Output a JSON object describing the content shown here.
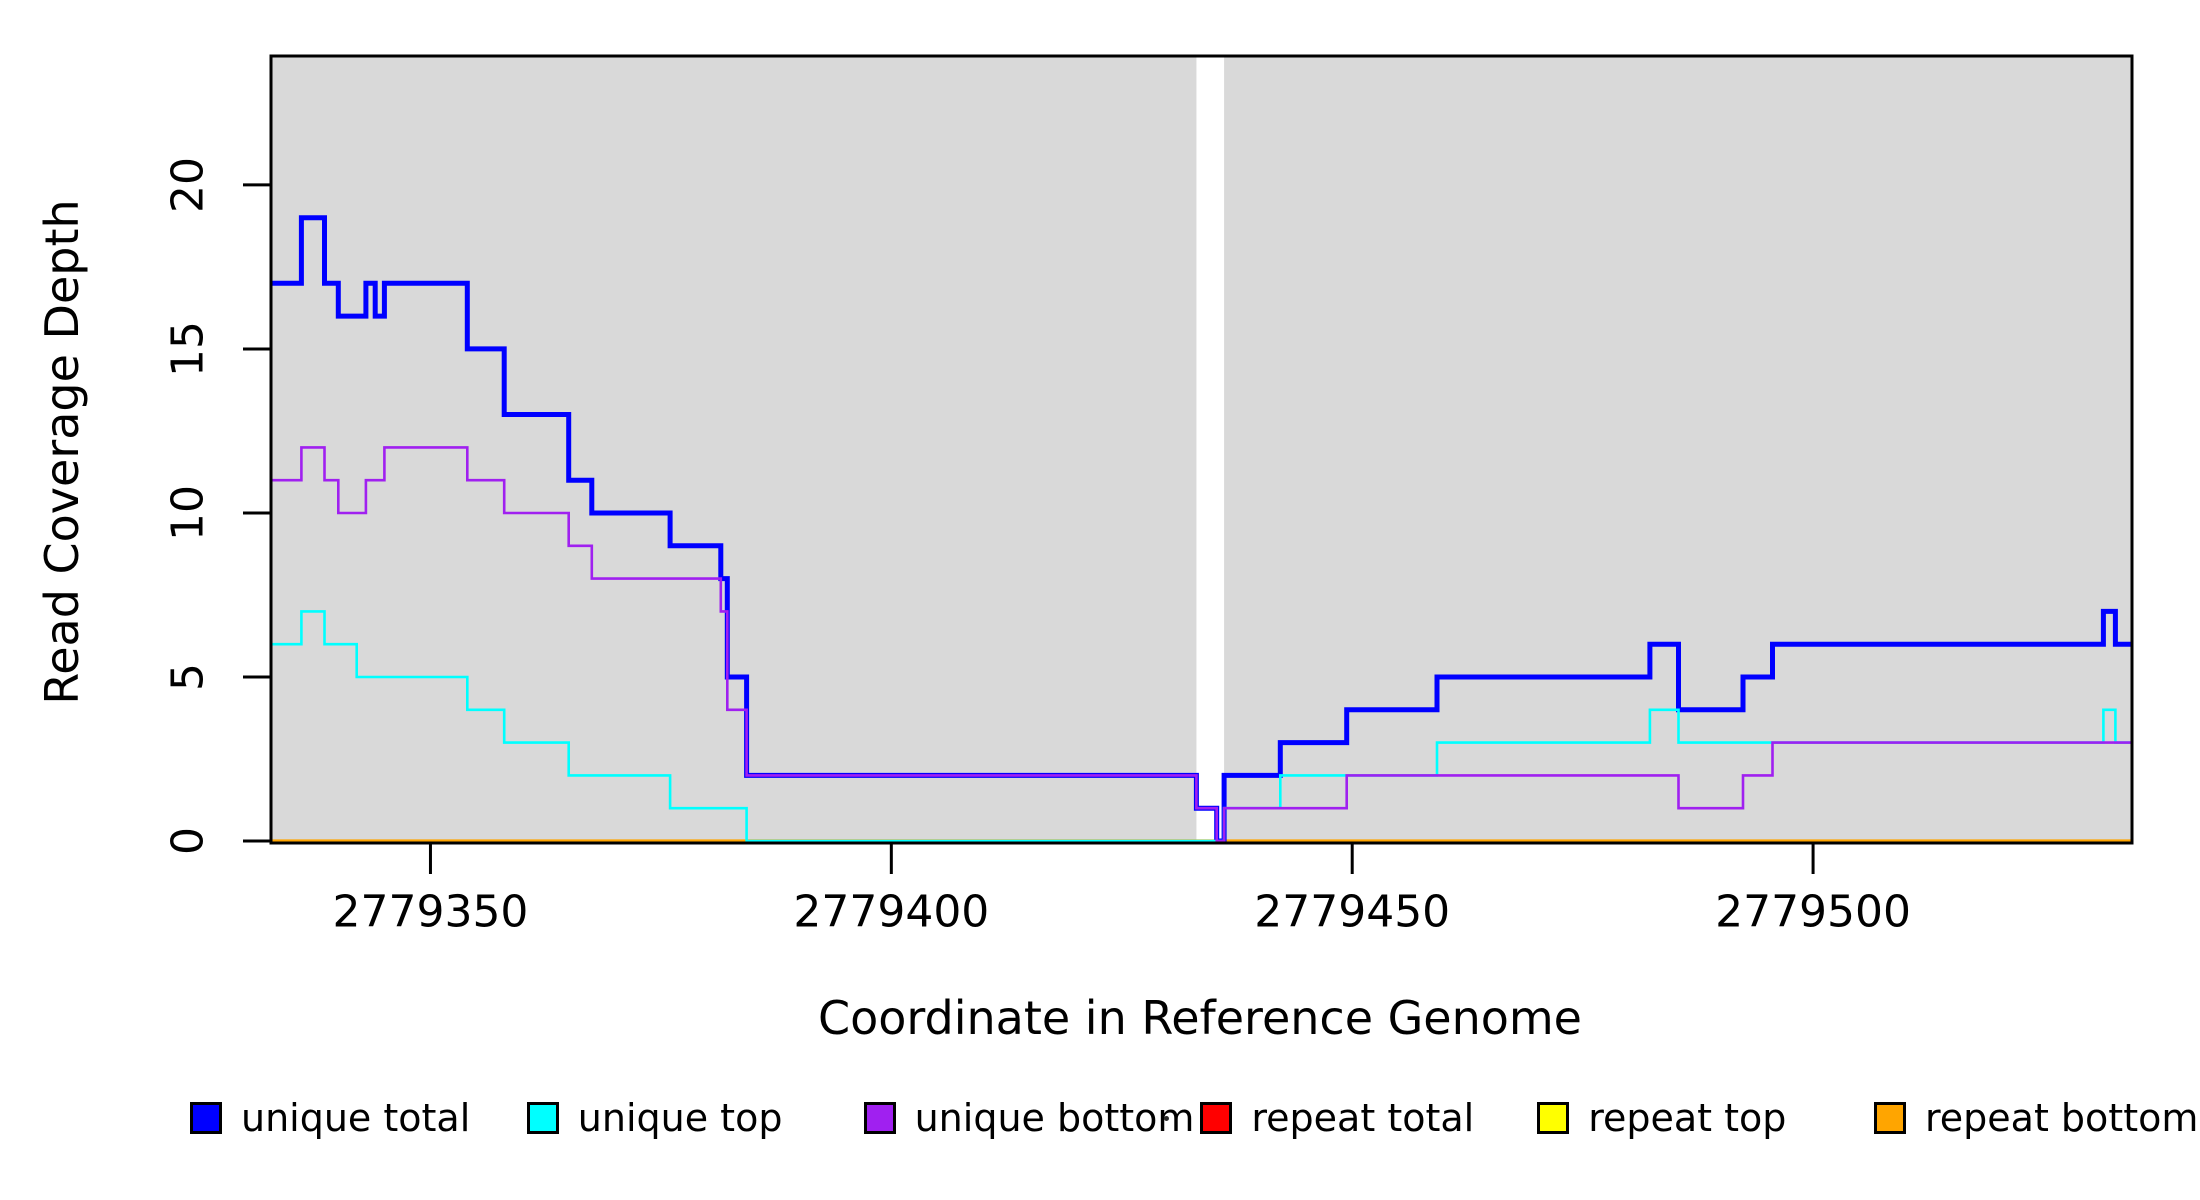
{
  "figure": {
    "background_color": "#ffffff",
    "plot_background_color": "#d9d9d9",
    "border_color": "#000000"
  },
  "chart_data": {
    "type": "line",
    "step_style": "post",
    "title": "",
    "xlabel": "Coordinate in Reference Genome",
    "ylabel": "Read Coverage Depth",
    "xlim": [
      2779332.7,
      2779534.6
    ],
    "ylim": [
      0,
      23.93
    ],
    "x_ticks": [
      2779350,
      2779400,
      2779450,
      2779500
    ],
    "y_ticks": [
      0,
      5,
      10,
      15,
      20
    ],
    "grid": false,
    "legend_position": "bottom",
    "panel_gap": {
      "x_start": 2779433.1,
      "x_end": 2779436.1
    },
    "draw_order": [
      3,
      4,
      5,
      0,
      1,
      2
    ],
    "series": [
      {
        "name": "unique total",
        "color": "#0000ff",
        "line_width": 5,
        "points": [
          [
            2779332.7,
            17
          ],
          [
            2779336,
            19
          ],
          [
            2779338.5,
            17
          ],
          [
            2779340,
            16
          ],
          [
            2779343,
            17
          ],
          [
            2779344,
            16
          ],
          [
            2779345,
            17
          ],
          [
            2779354,
            15
          ],
          [
            2779358,
            13
          ],
          [
            2779365,
            11
          ],
          [
            2779367.5,
            10
          ],
          [
            2779376,
            9
          ],
          [
            2779381.5,
            8
          ],
          [
            2779382.2,
            5
          ],
          [
            2779384.3,
            2
          ],
          [
            2779433.1,
            1
          ],
          [
            2779435.3,
            0
          ],
          [
            2779436.1,
            2
          ],
          [
            2779442.2,
            3
          ],
          [
            2779449.4,
            4
          ],
          [
            2779459.2,
            5
          ],
          [
            2779482.3,
            6
          ],
          [
            2779485.4,
            4
          ],
          [
            2779492.4,
            5
          ],
          [
            2779495.6,
            6
          ],
          [
            2779531.5,
            7
          ],
          [
            2779532.8,
            6
          ],
          [
            2779534.6,
            6
          ]
        ]
      },
      {
        "name": "unique top",
        "color": "#00ffff",
        "line_width": 2.6,
        "points": [
          [
            2779332.7,
            6
          ],
          [
            2779336,
            7
          ],
          [
            2779338.5,
            6
          ],
          [
            2779342,
            5
          ],
          [
            2779354,
            4
          ],
          [
            2779358,
            3
          ],
          [
            2779365,
            2
          ],
          [
            2779376,
            1
          ],
          [
            2779384.3,
            0
          ],
          [
            2779436.1,
            1
          ],
          [
            2779442.2,
            2
          ],
          [
            2779459.2,
            3
          ],
          [
            2779482.3,
            4
          ],
          [
            2779485.4,
            3
          ],
          [
            2779531.5,
            4
          ],
          [
            2779532.8,
            3
          ],
          [
            2779534.6,
            3
          ]
        ]
      },
      {
        "name": "unique bottom",
        "color": "#a020f0",
        "line_width": 2.6,
        "points": [
          [
            2779332.7,
            11
          ],
          [
            2779336,
            12
          ],
          [
            2779338.5,
            11
          ],
          [
            2779340,
            10
          ],
          [
            2779343,
            11
          ],
          [
            2779345,
            12
          ],
          [
            2779354,
            11
          ],
          [
            2779358,
            10
          ],
          [
            2779365,
            9
          ],
          [
            2779367.5,
            8
          ],
          [
            2779381.5,
            7
          ],
          [
            2779382.2,
            4
          ],
          [
            2779384.3,
            2
          ],
          [
            2779433.1,
            1
          ],
          [
            2779435.3,
            0
          ],
          [
            2779436.1,
            1
          ],
          [
            2779449.4,
            2
          ],
          [
            2779485.4,
            1
          ],
          [
            2779492.4,
            2
          ],
          [
            2779495.6,
            3
          ],
          [
            2779534.6,
            3
          ]
        ]
      },
      {
        "name": "repeat total",
        "color": "#ff0000",
        "line_width": 2.4,
        "points": [
          [
            2779332.7,
            0
          ],
          [
            2779534.6,
            0
          ]
        ]
      },
      {
        "name": "repeat top",
        "color": "#ffff00",
        "line_width": 2.4,
        "points": [
          [
            2779332.7,
            0
          ],
          [
            2779534.6,
            0
          ]
        ]
      },
      {
        "name": "repeat bottom",
        "color": "#ffa500",
        "line_width": 3.2,
        "points": [
          [
            2779332.7,
            0
          ],
          [
            2779534.6,
            0
          ]
        ]
      }
    ]
  },
  "legend": {
    "items": [
      {
        "label": "unique total",
        "color": "#0000ff"
      },
      {
        "label": "unique top",
        "color": "#00ffff"
      },
      {
        "label": "unique bottom",
        "color": "#a020f0"
      },
      {
        "label": "repeat total",
        "color": "#ff0000"
      },
      {
        "label": "repeat top",
        "color": "#ffff00"
      },
      {
        "label": "repeat bottom",
        "color": "#ffa500"
      }
    ]
  }
}
